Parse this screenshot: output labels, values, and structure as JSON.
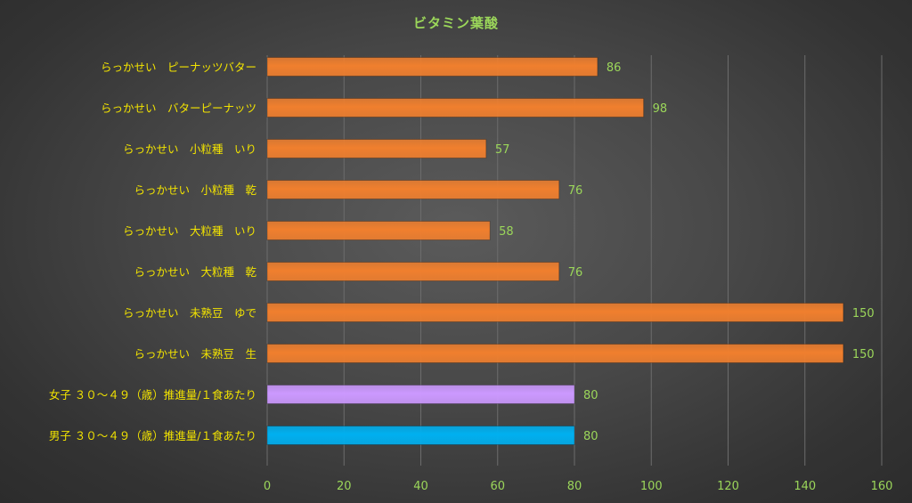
{
  "chart_data": {
    "type": "bar",
    "orientation": "horizontal",
    "title": "ビタミン葉酸",
    "xlabel": "",
    "ylabel": "",
    "xlim": [
      0,
      160
    ],
    "xticks": [
      0,
      20,
      40,
      60,
      80,
      100,
      120,
      140,
      160
    ],
    "grid": "vertical",
    "legend": "none",
    "categories": [
      "らっかせい　ピーナッツバター",
      "らっかせい　バターピーナッツ",
      "らっかせい　小粒種　いり",
      "らっかせい　小粒種　乾",
      "らっかせい　大粒種　いり",
      "らっかせい　大粒種　乾",
      "らっかせい　未熟豆　ゆで",
      "らっかせい　未熟豆　生",
      "女子 ３０～４９（歳）推進量/１食あたり",
      "男子 ３０～４９（歳）推進量/１食あたり"
    ],
    "values": [
      86,
      98,
      57,
      76,
      58,
      76,
      150,
      150,
      80,
      80
    ],
    "bar_colors": [
      "#f07f2e",
      "#f07f2e",
      "#f07f2e",
      "#f07f2e",
      "#f07f2e",
      "#f07f2e",
      "#f07f2e",
      "#f07f2e",
      "#cc99ff",
      "#00b0f0"
    ]
  },
  "colors": {
    "title": "#9bd65a",
    "category_label": "#f2e300",
    "value_label": "#9bd65a",
    "tick_label": "#9bd65a",
    "gridline": "#6c6c6c"
  }
}
